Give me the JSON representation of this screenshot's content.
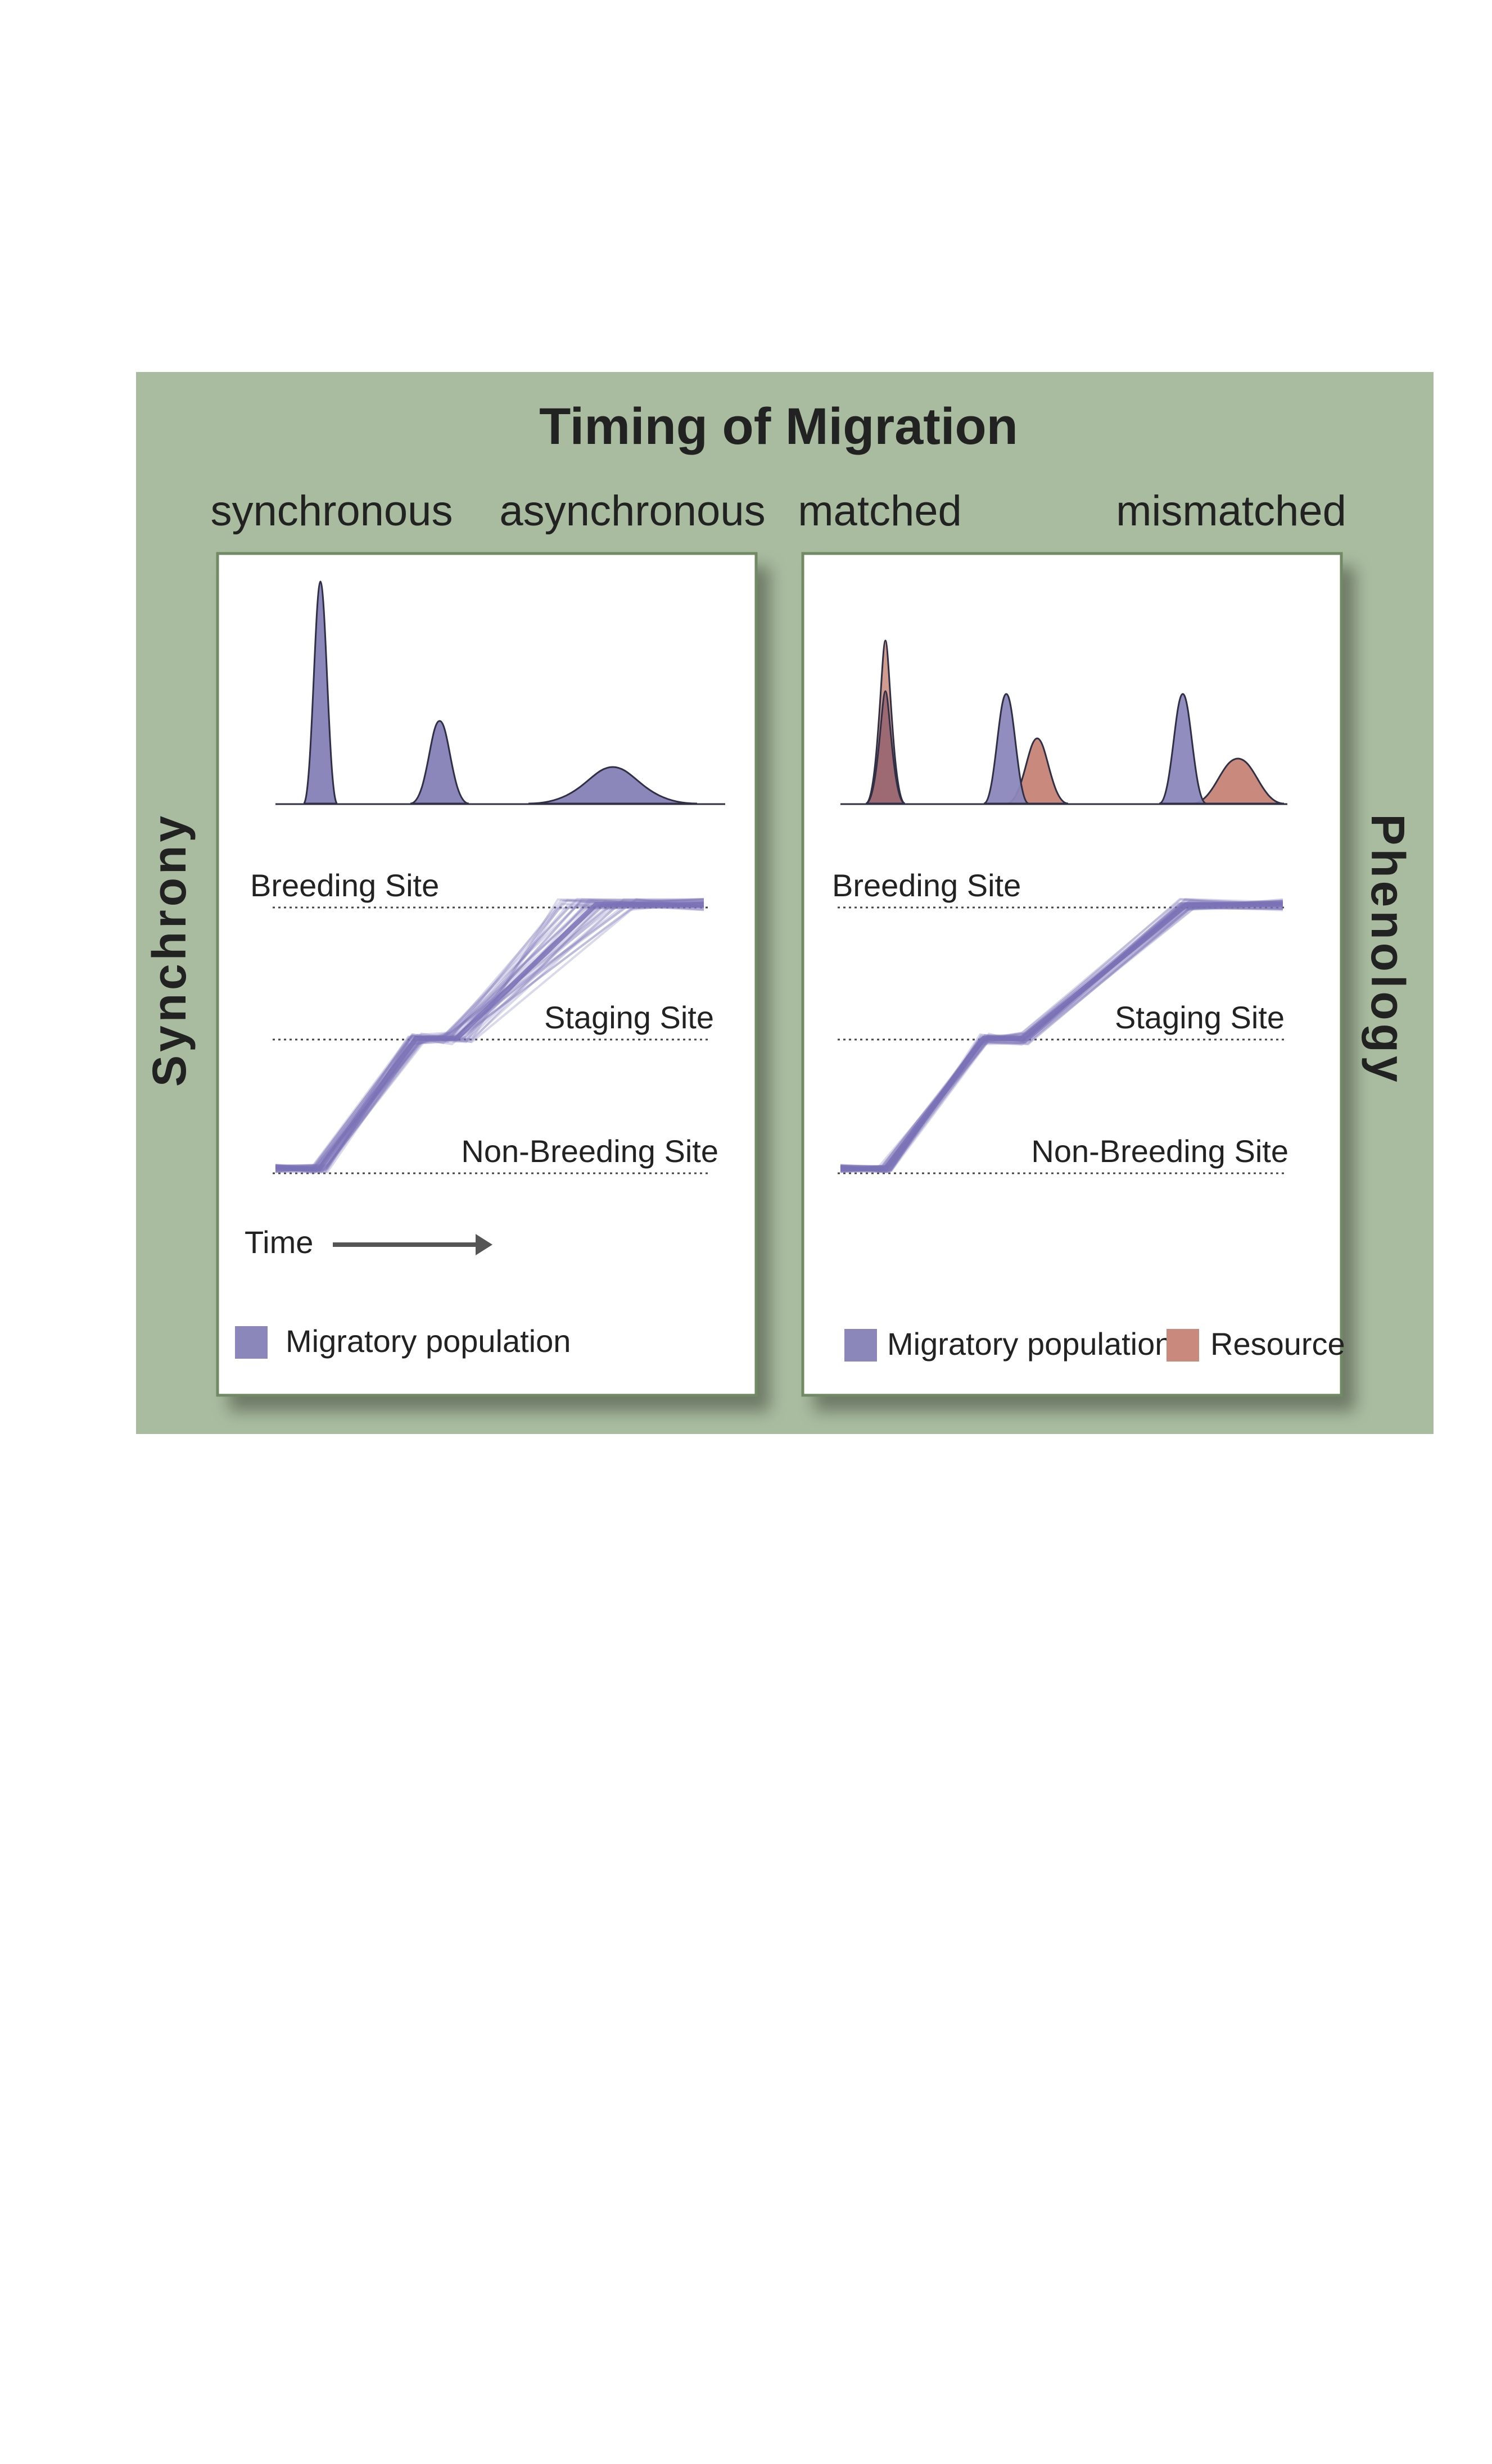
{
  "title": "Timing of Migration",
  "left_axis_label": "Synchrony",
  "right_axis_label": "Phenology",
  "colors": {
    "background": "#a9bc9f",
    "migratory": "#8b87bb",
    "migratory_line": "#7a72b6",
    "resource": "#c98a7d",
    "panel_border": "#6f8a63"
  },
  "panels": [
    {
      "headers": [
        "synchronous",
        "asynchronous"
      ],
      "sites": {
        "breeding": "Breeding Site",
        "staging": "Staging Site",
        "non_breeding": "Non-Breeding Site"
      },
      "time_label": "Time",
      "legend": [
        {
          "label": "Migratory population",
          "color": "#8b87bb"
        }
      ]
    },
    {
      "headers": [
        "matched",
        "mismatched"
      ],
      "sites": {
        "breeding": "Breeding Site",
        "staging": "Staging Site",
        "non_breeding": "Non-Breeding Site"
      },
      "legend": [
        {
          "label": "Migratory population",
          "color": "#8b87bb"
        },
        {
          "label": "Resource",
          "color": "#c98a7d"
        }
      ]
    }
  ]
}
